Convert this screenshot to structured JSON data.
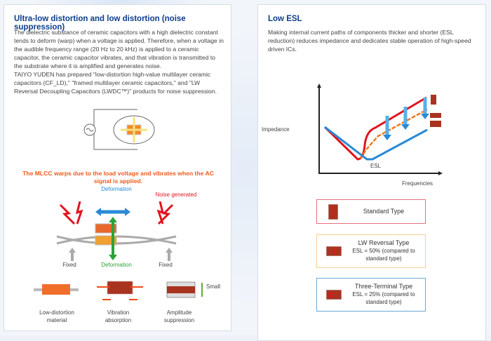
{
  "left": {
    "title": "Ultra-low distortion and low distortion (noise suppression)",
    "paragraphs": [
      "The dielectric substance of ceramic capacitors with a high dielectric constant tends to deform (warp) when a voltage is applied. Therefore, when a voltage in the audible frequency range (20 Hz to 20 kHz) is applied to a ceramic capacitor, the ceramic capacitor vibrates, and that vibration is transmitted to the substrate where it is amplified and generates noise.",
      "TAIYO YUDEN has prepared \"low-distortion high-value multilayer ceramic capacitors (CF_LD),\" \"framed multilayer ceramic capacitors,\" and \"LW Reversal Decoupling Capacitors (LWDC™)\" products for noise suppression."
    ],
    "caption": "The MLCC warps due to the load voltage and vibrates when the AC signal is applied.",
    "deformation_top": "Deformation",
    "noise": "Noise generated",
    "fixed_left": "Fixed",
    "fixed_right": "Fixed",
    "deformation_bottom": "Deformation",
    "solutions": [
      {
        "label": "Low-distortion material"
      },
      {
        "label": "Vibration absorption"
      },
      {
        "label": "Amplitude suppression"
      }
    ],
    "small": "Small"
  },
  "right": {
    "title": "Low ESL",
    "paragraph": "Making internal current paths of components thicker and shorter (ESL reduction) reduces impedance and dedicates stable operation of high-speed driven ICs.",
    "y_label": "Impedance",
    "x_label": "Frequencies",
    "esl_label": "ESL",
    "types": [
      {
        "name": "Standard Type",
        "note": "",
        "color": "#e8707e"
      },
      {
        "name": "LW Reversal Type",
        "note": "ESL = 50% (compared to standard type)",
        "color": "#f5cf94"
      },
      {
        "name": "Three-Terminal Type",
        "note": "ESL = 25% (compared to standard type)",
        "color": "#6aa8dc"
      }
    ]
  },
  "colors": {
    "title": "#0d3d8c",
    "caption": "#f05a1e",
    "blue": "#2a8ad6",
    "red": "#e0141e",
    "green": "#2aa33a"
  }
}
